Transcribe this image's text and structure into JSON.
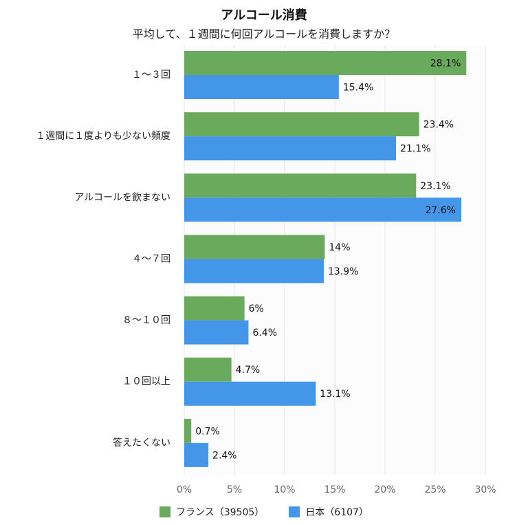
{
  "chart_data": {
    "type": "bar",
    "orientation": "horizontal",
    "title": "アルコール消費",
    "subtitle": "平均して、１週間に何回アルコールを消費しますか？",
    "categories": [
      "１〜３回",
      "１週間に１度よりも少ない頻度",
      "アルコールを飲まない",
      "４〜７回",
      "８〜１０回",
      "１０回以上",
      "答えたくない"
    ],
    "series": [
      {
        "name": "フランス（39505）",
        "color": "#6aaa5c",
        "values": [
          28.1,
          23.4,
          23.1,
          14,
          6,
          4.7,
          0.7
        ],
        "labels": [
          "28.1%",
          "23.4%",
          "23.1%",
          "14%",
          "6%",
          "4.7%",
          "0.7%"
        ]
      },
      {
        "name": "日本（6107）",
        "color": "#4396e8",
        "values": [
          15.4,
          21.1,
          27.6,
          13.9,
          6.4,
          13.1,
          2.4
        ],
        "labels": [
          "15.4%",
          "21.1%",
          "27.6%",
          "13.9%",
          "6.4%",
          "13.1%",
          "2.4%"
        ]
      }
    ],
    "xlim": [
      0,
      30
    ],
    "xticks": [
      0,
      5,
      10,
      15,
      20,
      25,
      30
    ],
    "xtick_labels": [
      "0%",
      "5%",
      "10%",
      "15%",
      "20%",
      "25%",
      "30%"
    ],
    "grid": true,
    "legend_position": "bottom"
  }
}
